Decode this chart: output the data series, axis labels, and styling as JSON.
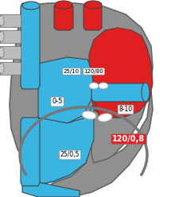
{
  "blue": "#3ab4e0",
  "red": "#e02020",
  "gray": "#888888",
  "dark": "#444444",
  "white": "#ffffff",
  "labels": {
    "ra": "0-5",
    "rv": "25/0,5",
    "la": "8-10",
    "lv": "120/0,8",
    "pa": "25/10",
    "ao": "120/80"
  }
}
